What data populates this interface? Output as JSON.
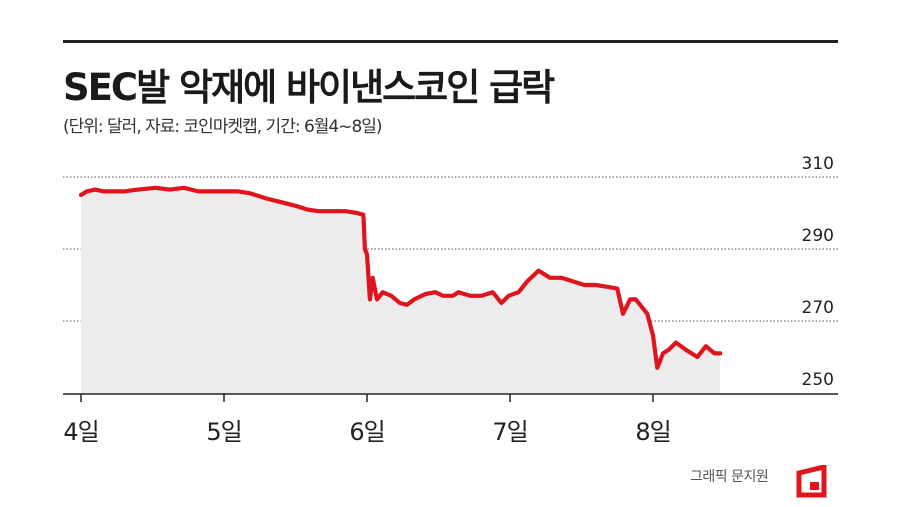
{
  "header": {
    "title": "SEC발 악재에 바이낸스코인 급락",
    "subtitle": "(단위: 달러, 자료: 코인마켓캡, 기간: 6월4~8일)"
  },
  "credit": "그래픽 문지원",
  "colors": {
    "line": "#e0141c",
    "area": "#ececec",
    "grid": "#555555",
    "axis": "#222222"
  },
  "chart_data": {
    "type": "area",
    "title": "SEC발 악재에 바이낸스코인 급락",
    "ylim": [
      250,
      310
    ],
    "yticks": [
      310,
      290,
      270,
      250
    ],
    "xlim": [
      0,
      4.5
    ],
    "xticks": [
      {
        "label": "4일",
        "x": 0
      },
      {
        "label": "5일",
        "x": 1
      },
      {
        "label": "6일",
        "x": 2
      },
      {
        "label": "7일",
        "x": 3
      },
      {
        "label": "8일",
        "x": 4
      }
    ],
    "grid": "horizontal dotted",
    "series": [
      {
        "values": [
          [
            0.0,
            305.0
          ],
          [
            0.04,
            306.0
          ],
          [
            0.1,
            306.5
          ],
          [
            0.16,
            306.0
          ],
          [
            0.3,
            306.0
          ],
          [
            0.4,
            306.5
          ],
          [
            0.52,
            307.0
          ],
          [
            0.62,
            306.5
          ],
          [
            0.72,
            307.0
          ],
          [
            0.82,
            306.0
          ],
          [
            0.96,
            306.0
          ],
          [
            1.1,
            306.0
          ],
          [
            1.18,
            305.5
          ],
          [
            1.3,
            304.0
          ],
          [
            1.4,
            303.0
          ],
          [
            1.5,
            302.0
          ],
          [
            1.58,
            301.0
          ],
          [
            1.66,
            300.5
          ],
          [
            1.76,
            300.5
          ],
          [
            1.85,
            300.5
          ],
          [
            1.93,
            300.0
          ],
          [
            1.975,
            299.5
          ],
          [
            1.985,
            290.0
          ],
          [
            2.0,
            288.5
          ],
          [
            2.02,
            276.0
          ],
          [
            2.04,
            282.0
          ],
          [
            2.07,
            276.0
          ],
          [
            2.11,
            278.0
          ],
          [
            2.17,
            277.0
          ],
          [
            2.23,
            275.0
          ],
          [
            2.28,
            274.5
          ],
          [
            2.33,
            276.0
          ],
          [
            2.41,
            277.5
          ],
          [
            2.48,
            278.0
          ],
          [
            2.53,
            277.0
          ],
          [
            2.6,
            277.0
          ],
          [
            2.64,
            278.0
          ],
          [
            2.72,
            277.0
          ],
          [
            2.8,
            277.0
          ],
          [
            2.88,
            278.0
          ],
          [
            2.94,
            275.0
          ],
          [
            2.99,
            277.0
          ],
          [
            3.06,
            278.0
          ],
          [
            3.12,
            281.0
          ],
          [
            3.2,
            284.0
          ],
          [
            3.28,
            282.0
          ],
          [
            3.36,
            282.0
          ],
          [
            3.44,
            281.0
          ],
          [
            3.52,
            280.0
          ],
          [
            3.6,
            280.0
          ],
          [
            3.68,
            279.5
          ],
          [
            3.75,
            279.0
          ],
          [
            3.79,
            272.0
          ],
          [
            3.84,
            276.0
          ],
          [
            3.88,
            276.0
          ],
          [
            3.96,
            272.0
          ],
          [
            4.0,
            266.0
          ],
          [
            4.03,
            257.0
          ],
          [
            4.07,
            261.0
          ],
          [
            4.11,
            262.0
          ],
          [
            4.16,
            264.0
          ],
          [
            4.23,
            262.0
          ],
          [
            4.31,
            260.0
          ],
          [
            4.37,
            263.0
          ],
          [
            4.43,
            261.0
          ],
          [
            4.47,
            261.0
          ]
        ]
      }
    ]
  }
}
